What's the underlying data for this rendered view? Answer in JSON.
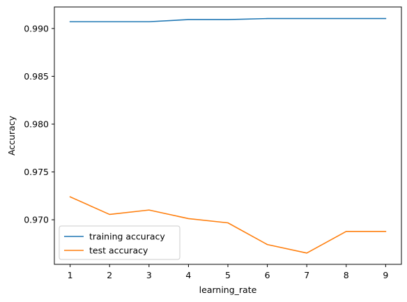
{
  "chart_data": {
    "type": "line",
    "title": "",
    "xlabel": "learning_rate",
    "ylabel": "Accuracy",
    "x": [
      1,
      2,
      3,
      4,
      5,
      6,
      7,
      8,
      9
    ],
    "xlim": [
      0.6,
      9.4
    ],
    "ylim": [
      0.96534,
      0.99225
    ],
    "xticks": [
      1,
      2,
      3,
      4,
      5,
      6,
      7,
      8,
      9
    ],
    "yticks": [
      0.97,
      0.975,
      0.98,
      0.985,
      0.99
    ],
    "ytick_labels": [
      "0.970",
      "0.975",
      "0.980",
      "0.985",
      "0.990"
    ],
    "grid": false,
    "legend_position": "lower-left",
    "series": [
      {
        "name": "training accuracy",
        "color": "#1f77b4",
        "values": [
          0.99071,
          0.99071,
          0.99071,
          0.99093,
          0.99093,
          0.99104,
          0.99104,
          0.99104,
          0.99104
        ]
      },
      {
        "name": "test accuracy",
        "color": "#ff7f0e",
        "values": [
          0.9724,
          0.97056,
          0.97102,
          0.97012,
          0.96968,
          0.96741,
          0.96652,
          0.96878,
          0.96878
        ]
      }
    ]
  }
}
